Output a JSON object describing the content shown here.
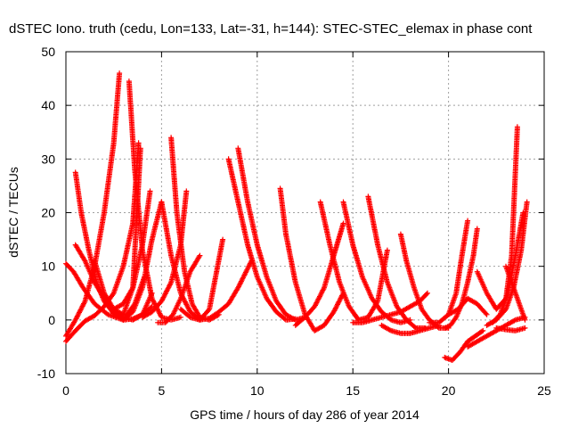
{
  "chart_data": {
    "type": "scatter",
    "title": "dSTEC Iono. truth (cedu, Lon=133, Lat=-31, h=144): STEC-STEC_elemax in phase cont",
    "xlabel": "GPS time / hours of day 286 of year 2014",
    "ylabel": "dSTEC  / TECUs",
    "xlim": [
      0,
      25
    ],
    "ylim": [
      -10,
      50
    ],
    "xticks": [
      "0",
      "5",
      "10",
      "15",
      "20",
      "25"
    ],
    "yticks": [
      "-10",
      "0",
      "10",
      "20",
      "30",
      "40",
      "50"
    ],
    "grid": true,
    "marker": "+",
    "color": "#ff0000",
    "series": [
      {
        "x": [
          0.0,
          0.4,
          0.9,
          1.5,
          2.2,
          3.0,
          3.6,
          4.1
        ],
        "y": [
          10.5,
          9.0,
          6.0,
          3.0,
          1.0,
          0.0,
          3.0,
          8.0
        ]
      },
      {
        "x": [
          0.0,
          0.5,
          1.0,
          1.5,
          2.0,
          2.5,
          2.8
        ],
        "y": [
          -3.0,
          0.0,
          3.5,
          10.0,
          20.0,
          33.0,
          46.0
        ]
      },
      {
        "x": [
          0.5,
          0.8,
          1.2,
          1.6,
          2.0,
          2.5,
          3.0,
          3.5,
          4.0,
          4.5
        ],
        "y": [
          27.5,
          20.0,
          13.0,
          7.0,
          3.5,
          1.2,
          0.0,
          0.2,
          1.0,
          2.5
        ]
      },
      {
        "x": [
          0.5,
          1.0,
          1.5,
          2.0,
          2.5,
          3.0,
          3.5,
          3.9
        ],
        "y": [
          14.0,
          11.0,
          7.0,
          4.0,
          2.0,
          1.0,
          6.0,
          32.0
        ]
      },
      {
        "x": [
          3.3,
          3.6,
          4.0,
          4.5,
          5.0,
          5.5,
          6.0
        ],
        "y": [
          44.5,
          28.0,
          13.0,
          4.0,
          0.5,
          0.0,
          0.5
        ]
      },
      {
        "x": [
          0.0,
          0.5,
          1.0,
          1.5,
          2.0,
          2.5,
          3.0,
          3.5,
          3.8
        ],
        "y": [
          -4.0,
          -2.0,
          -0.2,
          0.8,
          2.5,
          5.0,
          10.0,
          18.0,
          33.0
        ]
      },
      {
        "x": [
          1.5,
          2.0,
          2.5,
          3.0,
          3.5,
          4.0,
          4.5
        ],
        "y": [
          11.0,
          5.0,
          2.0,
          0.5,
          0.0,
          1.0,
          5.0
        ]
      },
      {
        "x": [
          3.0,
          3.5,
          4.0,
          4.5,
          5.0
        ],
        "y": [
          0.0,
          1.5,
          6.0,
          15.0,
          22.0
        ]
      },
      {
        "x": [
          2.5,
          3.0,
          3.5,
          4.0,
          4.4
        ],
        "y": [
          2.0,
          3.0,
          6.0,
          14.0,
          24.0
        ]
      },
      {
        "x": [
          5.5,
          5.8,
          6.2,
          6.6,
          7.0,
          7.5,
          8.0
        ],
        "y": [
          34.0,
          20.0,
          9.0,
          3.0,
          0.5,
          0.0,
          1.0
        ]
      },
      {
        "x": [
          4.0,
          4.5,
          5.0,
          5.5,
          6.0,
          6.3
        ],
        "y": [
          0.5,
          1.5,
          3.5,
          7.0,
          14.0,
          24.0
        ]
      },
      {
        "x": [
          5.0,
          5.5,
          6.0,
          6.5,
          7.0,
          7.5,
          8.2
        ],
        "y": [
          22.0,
          12.0,
          5.0,
          1.5,
          0.0,
          2.0,
          15.0
        ]
      },
      {
        "x": [
          4.8,
          5.2,
          5.6,
          6.0,
          6.5,
          7.0
        ],
        "y": [
          -0.5,
          -0.5,
          1.0,
          4.0,
          9.0,
          12.0
        ]
      },
      {
        "x": [
          8.5,
          9.0,
          9.5,
          10.0,
          10.5,
          11.0,
          11.5,
          12.0
        ],
        "y": [
          30.0,
          22.0,
          14.0,
          8.0,
          4.0,
          1.5,
          0.0,
          0.2
        ]
      },
      {
        "x": [
          9.0,
          9.5,
          10.0,
          10.5,
          11.0,
          11.5,
          12.0,
          12.5
        ],
        "y": [
          32.0,
          22.0,
          14.0,
          8.0,
          3.5,
          1.0,
          0.0,
          0.5
        ]
      },
      {
        "x": [
          6.0,
          6.5,
          7.0,
          7.5,
          8.0,
          8.5,
          9.0,
          9.7
        ],
        "y": [
          2.0,
          0.5,
          0.0,
          0.3,
          1.5,
          3.0,
          6.0,
          11.0
        ]
      },
      {
        "x": [
          11.2,
          11.5,
          12.0,
          12.5,
          13.0,
          13.5,
          14.0,
          14.5
        ],
        "y": [
          24.5,
          16.0,
          7.0,
          1.0,
          -2.0,
          -1.0,
          1.5,
          5.0
        ]
      },
      {
        "x": [
          12.0,
          12.5,
          13.0,
          13.5,
          14.0,
          14.5
        ],
        "y": [
          -1.0,
          0.5,
          2.5,
          6.0,
          12.0,
          18.0
        ]
      },
      {
        "x": [
          13.3,
          13.8,
          14.3,
          14.8,
          15.3,
          15.8,
          16.3,
          16.8
        ],
        "y": [
          22.0,
          14.0,
          7.0,
          2.5,
          0.0,
          0.5,
          3.5,
          13.0
        ]
      },
      {
        "x": [
          14.5,
          15.0,
          15.5,
          16.0,
          16.5,
          17.0,
          17.5,
          18.0
        ],
        "y": [
          22.0,
          14.0,
          8.0,
          4.0,
          1.5,
          0.0,
          -0.5,
          0.0
        ]
      },
      {
        "x": [
          15.8,
          16.3,
          16.8,
          17.3,
          17.8,
          18.3,
          18.8
        ],
        "y": [
          23.0,
          14.0,
          7.0,
          2.5,
          0.0,
          -1.5,
          -1.5
        ]
      },
      {
        "x": [
          17.5,
          17.8,
          18.2,
          18.6,
          19.0,
          19.5,
          20.0
        ],
        "y": [
          16.0,
          11.0,
          6.0,
          2.0,
          0.0,
          -1.5,
          -1.5
        ]
      },
      {
        "x": [
          15.0,
          15.5,
          16.0,
          16.5,
          17.0,
          17.5,
          18.0,
          18.5,
          18.9
        ],
        "y": [
          -0.5,
          -0.5,
          0.0,
          0.5,
          1.0,
          1.5,
          2.5,
          3.5,
          5.0
        ]
      },
      {
        "x": [
          16.5,
          17.0,
          17.5,
          18.0,
          18.5,
          19.0,
          19.5
        ],
        "y": [
          -1.0,
          -2.0,
          -2.5,
          -2.5,
          -2.0,
          -1.5,
          -1.0
        ]
      },
      {
        "x": [
          19.8,
          20.2,
          20.6,
          21.0,
          21.4,
          21.8
        ],
        "y": [
          -7.0,
          -7.5,
          -6.0,
          -4.0,
          -3.0,
          -2.0
        ]
      },
      {
        "x": [
          19.8,
          20.1,
          20.4,
          20.7,
          21.0,
          21.3,
          21.5
        ],
        "y": [
          -1.5,
          -1.0,
          0.5,
          3.0,
          7.0,
          12.0,
          17.0
        ]
      },
      {
        "x": [
          19.0,
          19.5,
          20.0,
          20.4,
          20.7,
          21.0
        ],
        "y": [
          -0.5,
          -0.5,
          1.0,
          5.0,
          12.0,
          18.5
        ]
      },
      {
        "x": [
          20.0,
          20.5,
          21.0,
          21.5,
          22.0
        ],
        "y": [
          1.0,
          2.0,
          4.0,
          3.0,
          1.0
        ]
      },
      {
        "x": [
          21.0,
          21.5,
          22.0,
          22.5,
          23.0,
          23.5,
          24.0
        ],
        "y": [
          -5.0,
          -4.0,
          -3.0,
          -2.0,
          -1.0,
          0.0,
          0.5
        ]
      },
      {
        "x": [
          21.5,
          22.0,
          22.5,
          23.0,
          23.3,
          23.6
        ],
        "y": [
          9.0,
          5.0,
          2.0,
          4.0,
          12.0,
          36.0
        ]
      },
      {
        "x": [
          22.0,
          22.5,
          23.0,
          23.4,
          23.8,
          24.1
        ],
        "y": [
          -1.0,
          0.0,
          2.0,
          6.0,
          13.0,
          22.0
        ]
      },
      {
        "x": [
          22.3,
          22.7,
          23.1,
          23.5,
          23.9
        ],
        "y": [
          -0.5,
          1.0,
          5.0,
          12.0,
          20.0
        ]
      },
      {
        "x": [
          22.5,
          23.0,
          23.5,
          24.0
        ],
        "y": [
          -1.5,
          -1.8,
          -2.0,
          -1.5
        ]
      },
      {
        "x": [
          23.0,
          23.4,
          23.7,
          24.0
        ],
        "y": [
          10.0,
          6.0,
          3.0,
          0.0
        ]
      }
    ]
  }
}
